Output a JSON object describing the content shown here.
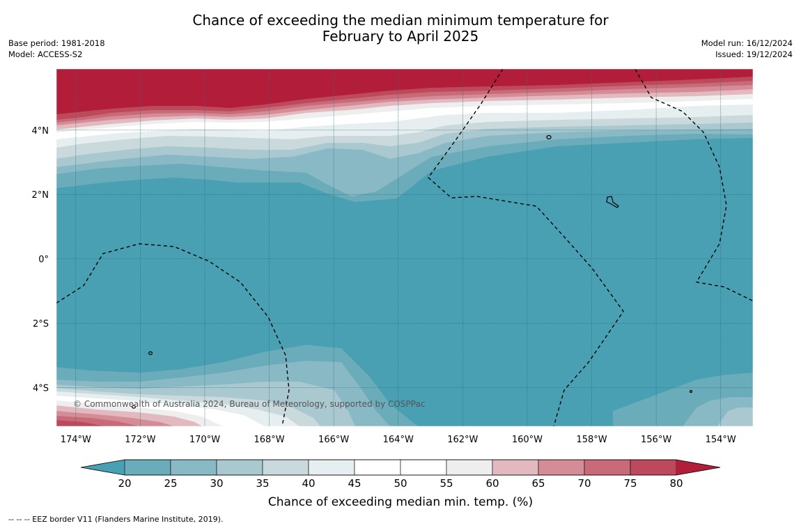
{
  "title_line1": "Chance of exceeding the median minimum temperature for",
  "title_line2": "February to April 2025",
  "meta_left": {
    "base_period": "Base period: 1981-2018",
    "model": "Model: ACCESS-S2"
  },
  "meta_right": {
    "model_run": "Model run: 16/12/2024",
    "issued": "Issued: 19/12/2024"
  },
  "copyright": "© Commonwealth of Australia 2024, Bureau of Meteorology, supported by COSPPac",
  "lat_ticks": [
    {
      "value": 4,
      "label": "4°N"
    },
    {
      "value": 2,
      "label": "2°N"
    },
    {
      "value": 0,
      "label": "0°"
    },
    {
      "value": -2,
      "label": "2°S"
    },
    {
      "value": -4,
      "label": "4°S"
    }
  ],
  "lon_ticks": [
    {
      "value": -174,
      "label": "174°W"
    },
    {
      "value": -172,
      "label": "172°W"
    },
    {
      "value": -170,
      "label": "170°W"
    },
    {
      "value": -168,
      "label": "168°W"
    },
    {
      "value": -166,
      "label": "166°W"
    },
    {
      "value": -164,
      "label": "164°W"
    },
    {
      "value": -162,
      "label": "162°W"
    },
    {
      "value": -160,
      "label": "160°W"
    },
    {
      "value": -158,
      "label": "158°W"
    },
    {
      "value": -156,
      "label": "156°W"
    },
    {
      "value": -154,
      "label": "154°W"
    }
  ],
  "extent": {
    "lon_min": -174.6,
    "lon_max": -153.0,
    "lat_min": -5.2,
    "lat_max": 5.9
  },
  "colorbar": {
    "title": "Chance of exceeding median min. temp. (%)",
    "labels": [
      "20",
      "25",
      "30",
      "35",
      "40",
      "45",
      "50",
      "55",
      "60",
      "65",
      "70",
      "75",
      "80"
    ],
    "colors": [
      "#6aacba",
      "#8ab9c6",
      "#a9c8cf",
      "#c9d9dc",
      "#e6eef0",
      "#ffffff",
      "#ffffff",
      "#eeeeee",
      "#e3b9c0",
      "#d48c97",
      "#c86a78",
      "#bd4a5c"
    ],
    "under_color": "#48a0b2",
    "over_color": "#b21e3a"
  },
  "footnote": "--  --  -- EEZ border V11 (Flanders Marine Institute, 2019)."
}
